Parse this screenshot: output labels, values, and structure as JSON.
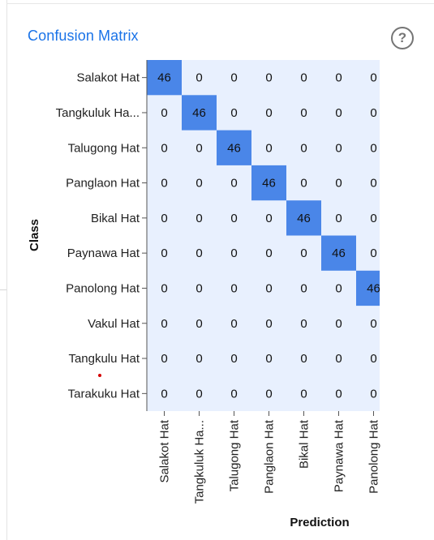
{
  "header": {
    "title": "Confusion Matrix",
    "help_icon": "help-circle-icon",
    "help_glyph": "?"
  },
  "chart_data": {
    "type": "heatmap",
    "title": "Confusion Matrix",
    "ylabel": "Class",
    "xlabel": "Prediction",
    "rows": [
      "Salakot Hat",
      "Tangkuluk Ha...",
      "Talugong Hat",
      "Panglaon Hat",
      "Bikal Hat",
      "Paynawa Hat",
      "Panolong Hat",
      "Vakul Hat",
      "Tangkulu Hat",
      "Tarakuku Hat"
    ],
    "columns": [
      "Salakot Hat",
      "Tangkuluk Ha...",
      "Talugong Hat",
      "Panglaon Hat",
      "Bikal Hat",
      "Paynawa Hat",
      "Panolong Hat"
    ],
    "values": [
      [
        46,
        0,
        0,
        0,
        0,
        0,
        0
      ],
      [
        0,
        46,
        0,
        0,
        0,
        0,
        0
      ],
      [
        0,
        0,
        46,
        0,
        0,
        0,
        0
      ],
      [
        0,
        0,
        0,
        46,
        0,
        0,
        0
      ],
      [
        0,
        0,
        0,
        0,
        46,
        0,
        0
      ],
      [
        0,
        0,
        0,
        0,
        0,
        46,
        0
      ],
      [
        0,
        0,
        0,
        0,
        0,
        0,
        46
      ],
      [
        0,
        0,
        0,
        0,
        0,
        0,
        0
      ],
      [
        0,
        0,
        0,
        0,
        0,
        0,
        0
      ],
      [
        0,
        0,
        0,
        0,
        0,
        0,
        0
      ]
    ],
    "colors": {
      "high": "#4a86e8",
      "low": "#e8f0fe",
      "text": "#111111"
    }
  }
}
